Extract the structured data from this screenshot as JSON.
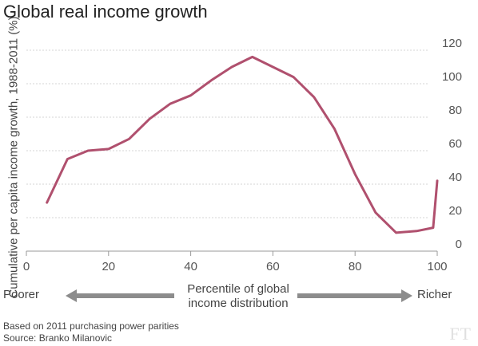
{
  "chart_data": {
    "type": "line",
    "title": "Global real income growth",
    "xlabel": "Percentile of global income distribution",
    "ylabel": "Cumulative per capita income growth, 1988-2011 (%)",
    "xlim": [
      0,
      100
    ],
    "ylim": [
      0,
      120
    ],
    "x_ticks": [
      0,
      20,
      40,
      60,
      80,
      100
    ],
    "y_ticks": [
      0,
      20,
      40,
      60,
      80,
      100,
      120
    ],
    "grid": true,
    "series_color": "#b0506e",
    "series": [
      {
        "x": [
          5,
          10,
          15,
          20,
          25,
          30,
          35,
          40,
          45,
          50,
          55,
          60,
          65,
          70,
          75,
          80,
          85,
          90,
          95,
          99,
          100
        ],
        "values": [
          29,
          55,
          60,
          61,
          67,
          79,
          88,
          93,
          102,
          110,
          116,
          110,
          104,
          92,
          73,
          46,
          23,
          11,
          12,
          14,
          42
        ]
      }
    ]
  },
  "direction": {
    "left": "Poorer",
    "right": "Richer",
    "center_line1": "Percentile of global",
    "center_line2": "income distribution"
  },
  "notes": {
    "basis": "Based on 2011 purchasing power parities",
    "source": "Source: Branko Milanovic"
  },
  "logo": "FT"
}
